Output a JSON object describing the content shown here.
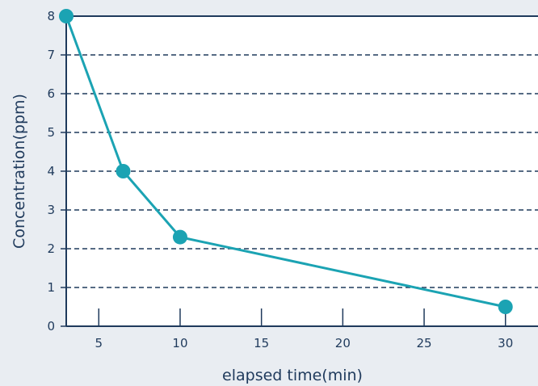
{
  "chart_data": {
    "type": "line",
    "title": "",
    "xlabel": "elapsed time(min)",
    "ylabel": "Concentration(ppm)",
    "xlim": [
      3,
      32
    ],
    "ylim": [
      0,
      8
    ],
    "x_ticks": [
      5,
      10,
      15,
      20,
      25,
      30
    ],
    "y_ticks": [
      0,
      1,
      2,
      3,
      4,
      5,
      6,
      7,
      8
    ],
    "grid": "horizontal dashed",
    "legend": "none",
    "series": [
      {
        "x": [
          3,
          6.5,
          10,
          30
        ],
        "y": [
          8,
          4,
          2.3,
          0.5
        ]
      }
    ],
    "colors": {
      "line": "#1ba3b3",
      "axis": "#1f3a5c",
      "grid": "#1f3a5c",
      "plot_bg": "#ffffff",
      "page_bg": "#e9edf2"
    }
  }
}
